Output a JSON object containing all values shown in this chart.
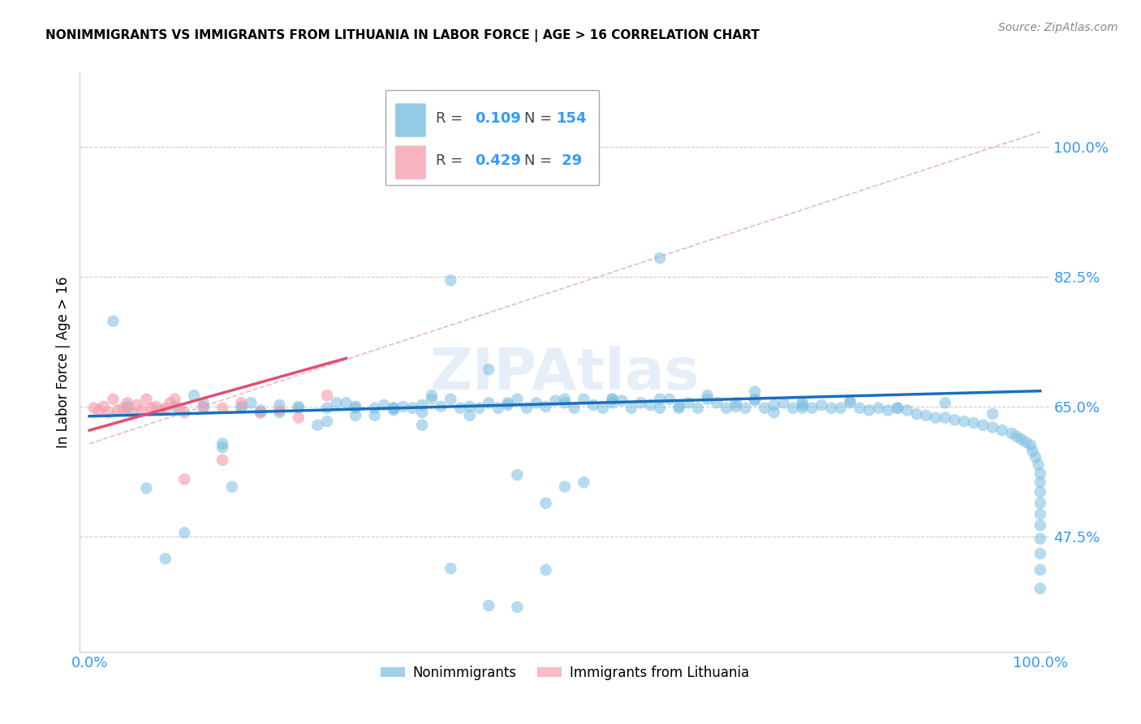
{
  "title": "NONIMMIGRANTS VS IMMIGRANTS FROM LITHUANIA IN LABOR FORCE | AGE > 16 CORRELATION CHART",
  "source": "Source: ZipAtlas.com",
  "ylabel": "In Labor Force | Age > 16",
  "y_tick_labels": [
    "47.5%",
    "65.0%",
    "82.5%",
    "100.0%"
  ],
  "y_tick_values": [
    0.475,
    0.65,
    0.825,
    1.0
  ],
  "x_tick_labels": [
    "0.0%",
    "100.0%"
  ],
  "x_lim": [
    -0.01,
    1.01
  ],
  "y_lim": [
    0.32,
    1.1
  ],
  "nonimmigrant_color": "#7bbde0",
  "immigrant_color": "#f5a0b0",
  "trend_blue": "#1a6fbd",
  "trend_pink": "#e05070",
  "trend_dashed_pink": "#e8b0c0",
  "nonimmigrant_label": "Nonimmigrants",
  "immigrant_label": "Immigrants from Lithuania",
  "blue_color": "#3399ff",
  "grid_color": "#cccccc",
  "background_color": "#ffffff",
  "watermark": "ZIPAtlas",
  "blue_trend_x": [
    0.0,
    1.0
  ],
  "blue_trend_y_start": 0.637,
  "blue_trend_y_end": 0.671,
  "pink_trend_x_start": 0.0,
  "pink_trend_x_end": 0.27,
  "pink_trend_y_start": 0.618,
  "pink_trend_y_end": 0.715,
  "dashed_trend_y_start": 0.6,
  "dashed_trend_y_end": 1.02,
  "ni_x": [
    0.025,
    0.04,
    0.09,
    0.11,
    0.12,
    0.14,
    0.16,
    0.17,
    0.18,
    0.2,
    0.22,
    0.24,
    0.25,
    0.27,
    0.28,
    0.3,
    0.31,
    0.32,
    0.33,
    0.34,
    0.35,
    0.36,
    0.37,
    0.38,
    0.39,
    0.4,
    0.41,
    0.42,
    0.43,
    0.44,
    0.45,
    0.46,
    0.47,
    0.48,
    0.49,
    0.5,
    0.51,
    0.52,
    0.53,
    0.54,
    0.55,
    0.56,
    0.57,
    0.58,
    0.59,
    0.6,
    0.61,
    0.62,
    0.63,
    0.64,
    0.65,
    0.66,
    0.67,
    0.68,
    0.69,
    0.7,
    0.71,
    0.72,
    0.73,
    0.74,
    0.75,
    0.76,
    0.77,
    0.78,
    0.79,
    0.8,
    0.81,
    0.82,
    0.83,
    0.84,
    0.85,
    0.86,
    0.87,
    0.88,
    0.89,
    0.9,
    0.91,
    0.92,
    0.93,
    0.94,
    0.95,
    0.96,
    0.97,
    0.975,
    0.98,
    0.985,
    0.99,
    0.992,
    0.995,
    0.998,
    1.0,
    1.0,
    1.0,
    1.0,
    1.0,
    1.0,
    1.0,
    1.0,
    1.0,
    1.0,
    0.28,
    0.38,
    0.48,
    0.36,
    0.42,
    0.5,
    0.26,
    0.32,
    0.16,
    0.2,
    0.1,
    0.14,
    0.3,
    0.44,
    0.52,
    0.62,
    0.7,
    0.75,
    0.68,
    0.72,
    0.38,
    0.42,
    0.55,
    0.6,
    0.45,
    0.48,
    0.35,
    0.4,
    0.32,
    0.28,
    0.22,
    0.18,
    0.12,
    0.08,
    0.06,
    0.04,
    0.5,
    0.6,
    0.7,
    0.8,
    0.9,
    0.55,
    0.65,
    0.75,
    0.85,
    0.95,
    0.45,
    0.35,
    0.25,
    0.15
  ],
  "ni_y": [
    0.765,
    0.65,
    0.65,
    0.665,
    0.655,
    0.6,
    0.65,
    0.655,
    0.645,
    0.652,
    0.65,
    0.625,
    0.648,
    0.655,
    0.638,
    0.648,
    0.652,
    0.648,
    0.65,
    0.648,
    0.652,
    0.665,
    0.65,
    0.66,
    0.648,
    0.65,
    0.648,
    0.655,
    0.648,
    0.652,
    0.66,
    0.648,
    0.655,
    0.65,
    0.658,
    0.655,
    0.648,
    0.66,
    0.652,
    0.648,
    0.66,
    0.658,
    0.648,
    0.655,
    0.652,
    0.648,
    0.66,
    0.648,
    0.655,
    0.648,
    0.66,
    0.655,
    0.648,
    0.655,
    0.648,
    0.66,
    0.648,
    0.652,
    0.655,
    0.648,
    0.655,
    0.648,
    0.652,
    0.648,
    0.648,
    0.655,
    0.648,
    0.645,
    0.648,
    0.645,
    0.648,
    0.645,
    0.64,
    0.638,
    0.635,
    0.635,
    0.632,
    0.63,
    0.628,
    0.625,
    0.622,
    0.618,
    0.614,
    0.61,
    0.606,
    0.602,
    0.598,
    0.59,
    0.582,
    0.572,
    0.56,
    0.548,
    0.535,
    0.52,
    0.505,
    0.49,
    0.472,
    0.452,
    0.43,
    0.405,
    0.648,
    0.432,
    0.52,
    0.66,
    0.382,
    0.542,
    0.655,
    0.645,
    0.648,
    0.642,
    0.48,
    0.595,
    0.638,
    0.655,
    0.548,
    0.65,
    0.658,
    0.648,
    0.65,
    0.642,
    0.82,
    0.7,
    0.66,
    0.85,
    0.38,
    0.43,
    0.625,
    0.638,
    0.648,
    0.65,
    0.648,
    0.642,
    0.648,
    0.445,
    0.54,
    0.648,
    0.66,
    0.66,
    0.67,
    0.658,
    0.655,
    0.655,
    0.665,
    0.652,
    0.648,
    0.64,
    0.558,
    0.642,
    0.63,
    0.542
  ],
  "im_x": [
    0.005,
    0.01,
    0.015,
    0.02,
    0.025,
    0.03,
    0.035,
    0.04,
    0.045,
    0.05,
    0.055,
    0.06,
    0.065,
    0.07,
    0.075,
    0.08,
    0.085,
    0.09,
    0.095,
    0.1,
    0.12,
    0.14,
    0.16,
    0.18,
    0.2,
    0.14,
    0.1,
    0.22,
    0.25
  ],
  "im_y": [
    0.648,
    0.645,
    0.65,
    0.642,
    0.66,
    0.645,
    0.648,
    0.655,
    0.642,
    0.652,
    0.645,
    0.66,
    0.648,
    0.65,
    0.645,
    0.648,
    0.655,
    0.66,
    0.648,
    0.642,
    0.65,
    0.648,
    0.655,
    0.642,
    0.645,
    0.578,
    0.552,
    0.635,
    0.665
  ]
}
